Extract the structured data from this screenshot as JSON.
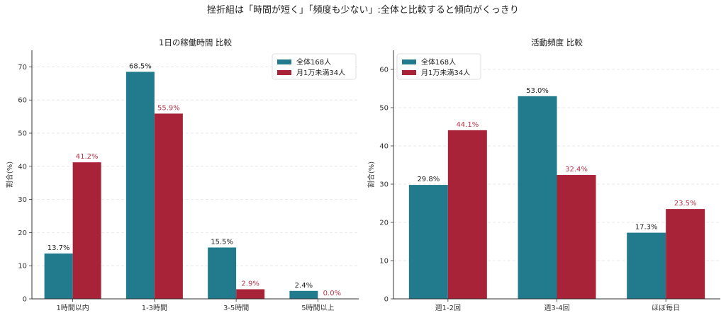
{
  "suptitle": "挫折組は「時間が短く」「頻度も少ない」:全体と比較すると傾向がくっきり",
  "colors": {
    "all": "#217b8c",
    "low": "#a82238",
    "low_label": "#b5344a",
    "all_label": "#222222",
    "grid": "#e3e3e3"
  },
  "chart_data": [
    {
      "type": "bar",
      "title": "1日の稼働時間 比較",
      "ylabel": "割合(%)",
      "ylim": [
        0,
        75
      ],
      "yticks": [
        0,
        10,
        20,
        30,
        40,
        50,
        60,
        70
      ],
      "categories": [
        "1時間以内",
        "1-3時間",
        "3-5時間",
        "5時間以上"
      ],
      "series": [
        {
          "name": "全体168人",
          "values": [
            13.7,
            68.5,
            15.5,
            2.4
          ],
          "labels": [
            "13.7%",
            "68.5%",
            "15.5%",
            "2.4%"
          ]
        },
        {
          "name": "月1万未満34人",
          "values": [
            41.2,
            55.9,
            2.9,
            0.0
          ],
          "labels": [
            "41.2%",
            "55.9%",
            "2.9%",
            "0.0%"
          ]
        }
      ],
      "grid": true,
      "legend": "top-right"
    },
    {
      "type": "bar",
      "title": "活動頻度 比較",
      "ylabel": "割合(%)",
      "ylim": [
        0,
        65
      ],
      "yticks": [
        0,
        10,
        20,
        30,
        40,
        50,
        60
      ],
      "categories": [
        "週1-2回",
        "週3-4回",
        "ほぼ毎日"
      ],
      "series": [
        {
          "name": "全体168人",
          "values": [
            29.8,
            53.0,
            17.3
          ],
          "labels": [
            "29.8%",
            "53.0%",
            "17.3%"
          ]
        },
        {
          "name": "月1万未満34人",
          "values": [
            44.1,
            32.4,
            23.5
          ],
          "labels": [
            "44.1%",
            "32.4%",
            "23.5%"
          ]
        }
      ],
      "grid": true,
      "legend": "top-left"
    }
  ]
}
